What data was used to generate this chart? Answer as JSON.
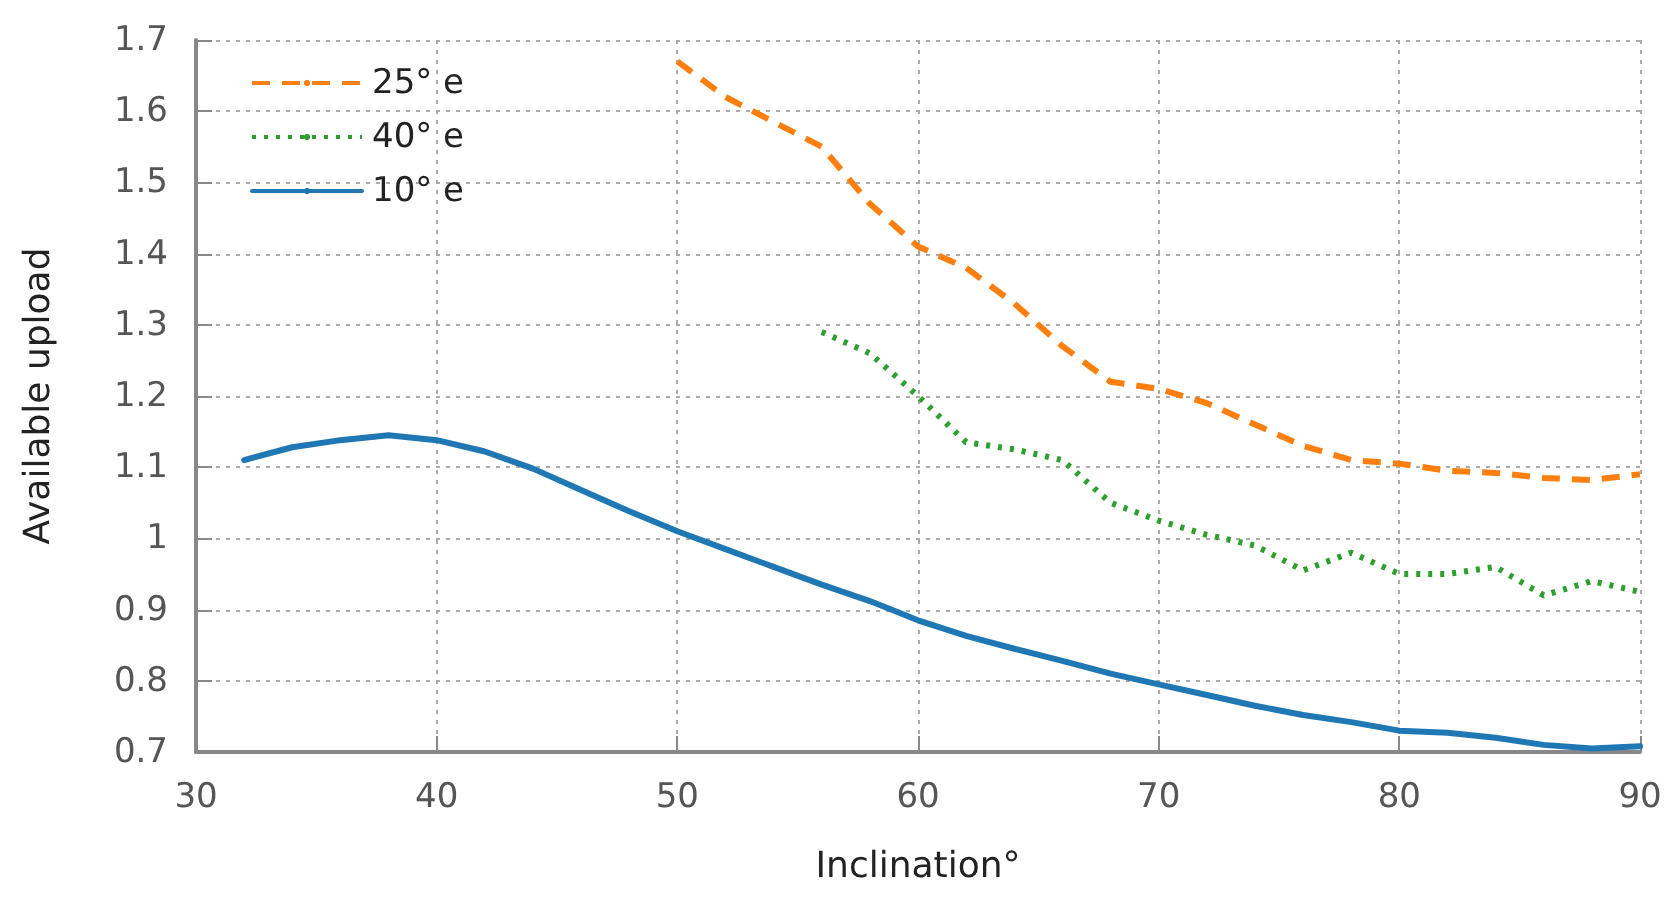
{
  "chart_data": {
    "type": "line",
    "xlabel": "Inclination°",
    "ylabel": "Available upload",
    "xlim": [
      30,
      90
    ],
    "xticks": [
      30,
      40,
      50,
      60,
      70,
      80,
      90
    ],
    "ylim": [
      0.7,
      1.7
    ],
    "yticks": [
      0.7,
      0.8,
      0.9,
      1,
      1.1,
      1.2,
      1.3,
      1.4,
      1.5,
      1.6,
      1.7
    ],
    "grid": true,
    "legend": "top left",
    "marker": "none",
    "series": [
      {
        "name": "25° e",
        "color": "#ff7f0e",
        "line_style": "dashed",
        "x": [
          50,
          52,
          54,
          56,
          58,
          60,
          62,
          64,
          66,
          68,
          70,
          72,
          74,
          76,
          78,
          80,
          82,
          84,
          86,
          88,
          90
        ],
        "values": [
          1.67,
          1.62,
          1.585,
          1.55,
          1.47,
          1.41,
          1.38,
          1.33,
          1.27,
          1.22,
          1.21,
          1.19,
          1.16,
          1.13,
          1.11,
          1.105,
          1.095,
          1.092,
          1.085,
          1.082,
          1.09
        ]
      },
      {
        "name": "40° e",
        "color": "#2ca02c",
        "line_style": "dotted",
        "x": [
          56,
          58,
          60,
          62,
          64,
          66,
          68,
          70,
          72,
          74,
          76,
          78,
          80,
          82,
          84,
          86,
          88,
          90
        ],
        "values": [
          1.29,
          1.26,
          1.2,
          1.135,
          1.125,
          1.11,
          1.05,
          1.025,
          1.005,
          0.99,
          0.955,
          0.98,
          0.95,
          0.95,
          0.96,
          0.92,
          0.94,
          0.925
        ]
      },
      {
        "name": "10° e",
        "color": "#1f77b4",
        "line_style": "solid",
        "x": [
          32,
          34,
          36,
          38,
          40,
          42,
          44,
          46,
          48,
          50,
          52,
          54,
          56,
          58,
          60,
          62,
          64,
          66,
          68,
          70,
          72,
          74,
          76,
          78,
          80,
          82,
          84,
          86,
          88,
          90
        ],
        "values": [
          1.11,
          1.128,
          1.138,
          1.145,
          1.138,
          1.122,
          1.098,
          1.068,
          1.038,
          1.01,
          0.985,
          0.96,
          0.935,
          0.912,
          0.885,
          0.863,
          0.845,
          0.828,
          0.81,
          0.795,
          0.78,
          0.765,
          0.752,
          0.742,
          0.73,
          0.727,
          0.72,
          0.71,
          0.705,
          0.708
        ]
      }
    ]
  }
}
